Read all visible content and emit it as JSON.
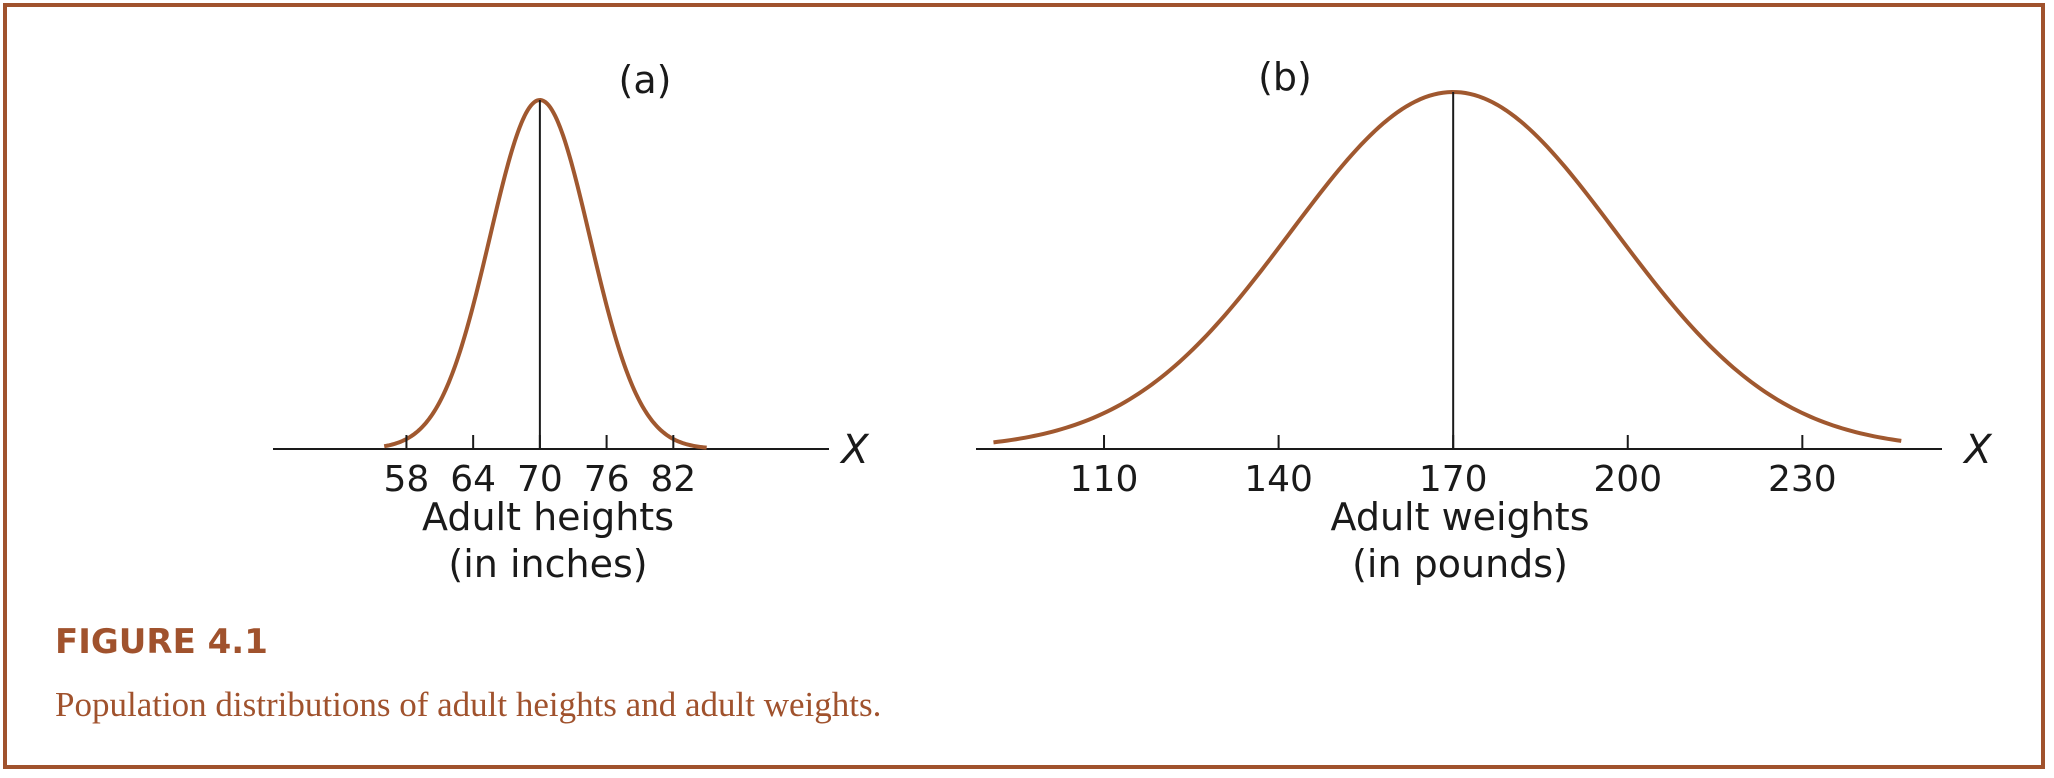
{
  "figure": {
    "title": "FIGURE 4.1",
    "caption": "Population distributions of adult heights and adult weights."
  },
  "colors": {
    "frame": "#a0522d",
    "curve": "#a0582f",
    "axis": "#1a1a1a",
    "caption": "#a0522d"
  },
  "chart_data": [
    {
      "type": "line",
      "panel_label": "(a)",
      "curve": "normal",
      "mean": 70,
      "sd": 4.5,
      "x_range": [
        56,
        85
      ],
      "xlim": [
        46,
        96
      ],
      "xticks": [
        58,
        64,
        70,
        76,
        82
      ],
      "xtick_labels": [
        "58",
        "64",
        "70",
        "76",
        "82"
      ],
      "xlabel_line1": "Adult heights",
      "xlabel_line2": "(in inches)",
      "axis_var": "X"
    },
    {
      "type": "line",
      "panel_label": "(b)",
      "curve": "normal",
      "mean": 170,
      "sd": 28,
      "x_range": [
        91,
        247
      ],
      "xlim": [
        88,
        254
      ],
      "xticks": [
        110,
        140,
        170,
        200,
        230
      ],
      "xtick_labels": [
        "110",
        "140",
        "170",
        "200",
        "230"
      ],
      "xlabel_line1": "Adult weights",
      "xlabel_line2": "(in pounds)",
      "axis_var": "X"
    }
  ]
}
